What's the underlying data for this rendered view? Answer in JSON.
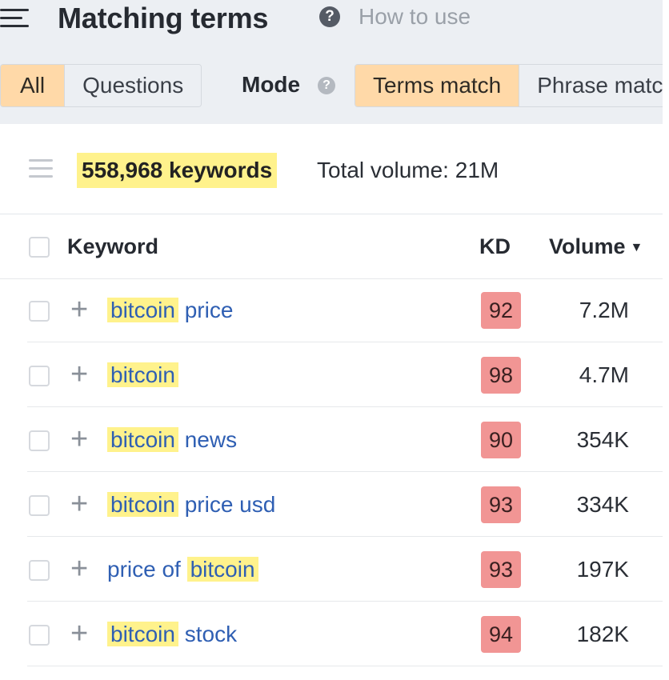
{
  "header": {
    "title": "Matching terms",
    "help_symbol": "?",
    "how_to_label": "How to use"
  },
  "filters": {
    "tabs": [
      {
        "label": "All",
        "active": true
      },
      {
        "label": "Questions",
        "active": false
      }
    ],
    "mode_label": "Mode",
    "mode_help_symbol": "?",
    "modes": [
      {
        "label": "Terms match",
        "active": true
      },
      {
        "label": "Phrase match",
        "active": false
      }
    ]
  },
  "summary": {
    "keyword_count": "558,968 keywords",
    "total_volume": "Total volume: 21M"
  },
  "table": {
    "columns": {
      "keyword": "Keyword",
      "kd": "KD",
      "volume": "Volume",
      "volume_sort_icon": "caret-down-icon"
    },
    "rows": [
      {
        "parts": [
          {
            "text": "bitcoin",
            "hl": true
          },
          {
            "text": " price",
            "hl": false
          }
        ],
        "kd": "92",
        "volume": "7.2M"
      },
      {
        "parts": [
          {
            "text": "bitcoin",
            "hl": true
          }
        ],
        "kd": "98",
        "volume": "4.7M"
      },
      {
        "parts": [
          {
            "text": "bitcoin",
            "hl": true
          },
          {
            "text": " news",
            "hl": false
          }
        ],
        "kd": "90",
        "volume": "354K"
      },
      {
        "parts": [
          {
            "text": "bitcoin",
            "hl": true
          },
          {
            "text": " price usd",
            "hl": false
          }
        ],
        "kd": "93",
        "volume": "334K"
      },
      {
        "parts": [
          {
            "text": "price of ",
            "hl": false
          },
          {
            "text": "bitcoin",
            "hl": true
          }
        ],
        "kd": "93",
        "volume": "197K"
      },
      {
        "parts": [
          {
            "text": "bitcoin",
            "hl": true
          },
          {
            "text": " stock",
            "hl": false
          }
        ],
        "kd": "94",
        "volume": "182K"
      }
    ]
  },
  "colors": {
    "active_segment": "#ffd9a8",
    "highlight": "#fff28c",
    "kd_badge": "#f19594",
    "keyword_link": "#2f5fb3"
  }
}
